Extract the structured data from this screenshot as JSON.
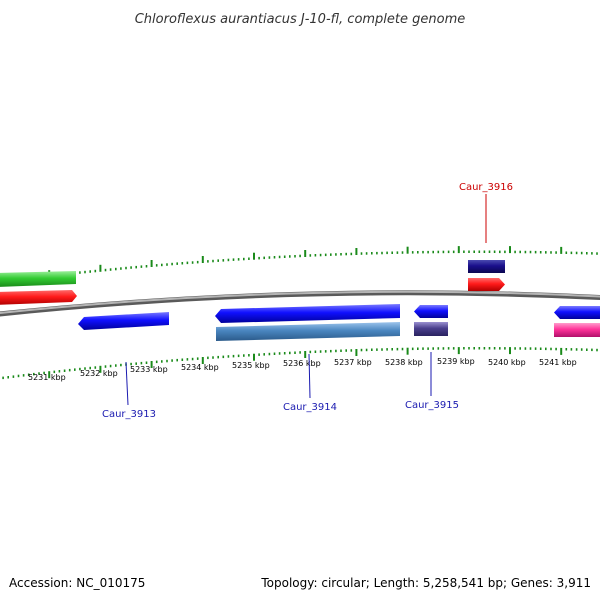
{
  "title": "Chloroflexus aurantiacus J-10-fl, complete genome",
  "footer": {
    "accession": "Accession: NC_010175",
    "summary": "Topology: circular; Length: 5,258,541 bp; Genes: 3,911"
  },
  "scale_labels": [
    "5231 kbp",
    "5232 kbp",
    "5233 kbp",
    "5234 kbp",
    "5235 kbp",
    "5236 kbp",
    "5237 kbp",
    "5238 kbp",
    "5239 kbp",
    "5240 kbp",
    "5241 kbp"
  ],
  "gene_labels": {
    "caur_3913": "Caur_3913",
    "caur_3914": "Caur_3914",
    "caur_3915": "Caur_3915",
    "caur_3916": "Caur_3916"
  },
  "colors": {
    "backbone": "#8c8c8c",
    "tick": "#1a8a1a",
    "forward_cds": "#ff1a1a",
    "forward_gene": "#1a0f8c",
    "reverse_cds": "#1010ff",
    "reverse_gene_light": "#4a86c0",
    "reverse_gene_dark": "#4a3f8c",
    "green_feature": "#33cc33",
    "pink_feature": "#ff3399",
    "label_forward": "#cc0000",
    "label_reverse": "#1a1ab0"
  }
}
